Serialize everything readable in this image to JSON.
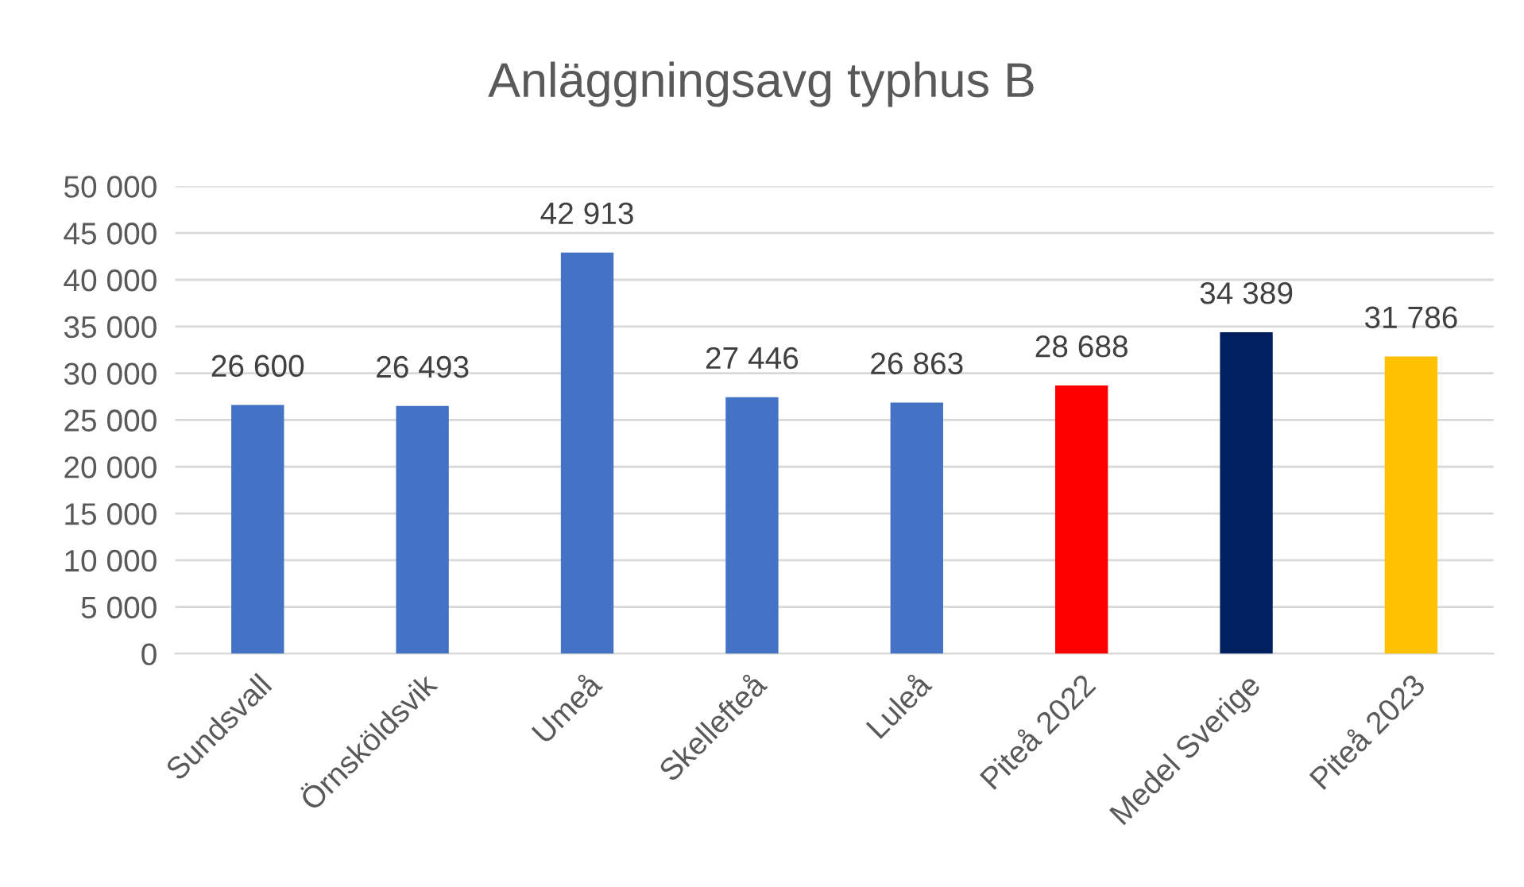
{
  "chart_data": {
    "type": "bar",
    "title": "Anläggningsavg typhus B",
    "categories": [
      "Sundsvall",
      "Örnsköldsvik",
      "Umeå",
      "Skellefteå",
      "Luleå",
      "Piteå 2022",
      "Medel Sverige",
      "Piteå 2023"
    ],
    "values": [
      26600,
      26493,
      42913,
      27446,
      26863,
      28688,
      34389,
      31786
    ],
    "colors": [
      "#4472c4",
      "#4472c4",
      "#4472c4",
      "#4472c4",
      "#4472c4",
      "#ff0000",
      "#002060",
      "#ffc000"
    ],
    "value_labels": [
      "26 600",
      "26 493",
      "42 913",
      "27 446",
      "26 863",
      "28 688",
      "34 389",
      "31 786"
    ],
    "ylim": [
      0,
      50000
    ],
    "yticks": [
      {
        "value": 0,
        "label": "0"
      },
      {
        "value": 5000,
        "label": "5 000"
      },
      {
        "value": 10000,
        "label": "10 000"
      },
      {
        "value": 15000,
        "label": "15 000"
      },
      {
        "value": 20000,
        "label": "20 000"
      },
      {
        "value": 25000,
        "label": "25 000"
      },
      {
        "value": 30000,
        "label": "30 000"
      },
      {
        "value": 35000,
        "label": "35 000"
      },
      {
        "value": 40000,
        "label": "40 000"
      },
      {
        "value": 45000,
        "label": "45 000"
      },
      {
        "value": 50000,
        "label": "50 000"
      }
    ],
    "grid": "y",
    "legend": false
  }
}
